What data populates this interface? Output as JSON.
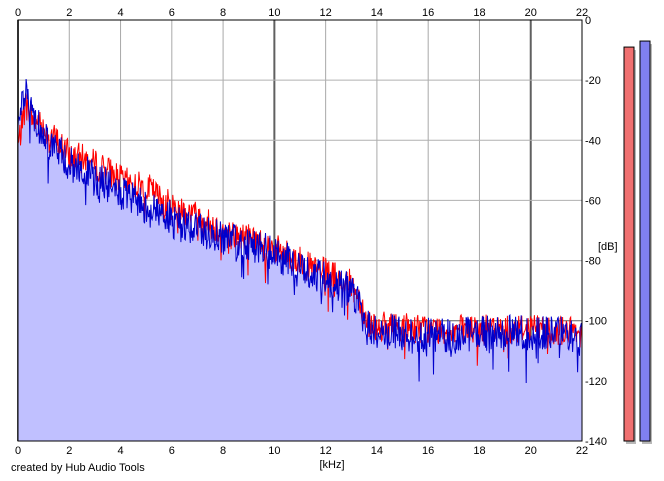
{
  "chart_data": {
    "type": "line",
    "xlabel": "[kHz]",
    "ylabel": "[dB]",
    "xlim": [
      0,
      22
    ],
    "ylim": [
      -140,
      0
    ],
    "x_ticks": [
      0,
      2,
      4,
      6,
      8,
      10,
      12,
      14,
      16,
      18,
      20,
      22
    ],
    "y_ticks": [
      0,
      -20,
      -40,
      -60,
      -80,
      -100,
      -120,
      -140
    ],
    "grid": true,
    "fill_color": "#c0c0ff",
    "series": [
      {
        "color": "#ff0000",
        "x": [
          0,
          0.3,
          0.6,
          1,
          1.5,
          2,
          2.5,
          3,
          3.5,
          4,
          4.5,
          5,
          5.5,
          6,
          6.5,
          7,
          7.5,
          8,
          8.5,
          9,
          9.5,
          10,
          10.5,
          11,
          11.5,
          12,
          12.5,
          13,
          13.3,
          13.6,
          14,
          15,
          16,
          17,
          18,
          19,
          20,
          21,
          22
        ],
        "y": [
          -42,
          -28,
          -33,
          -36,
          -40,
          -45,
          -46,
          -48,
          -50,
          -53,
          -55,
          -55,
          -59,
          -62,
          -63,
          -65,
          -68,
          -70,
          -72,
          -72,
          -74,
          -76,
          -78,
          -80,
          -83,
          -84,
          -86,
          -88,
          -92,
          -100,
          -102,
          -102,
          -103,
          -103,
          -103,
          -103,
          -102,
          -103,
          -104
        ]
      },
      {
        "color": "#0000cc",
        "x": [
          0,
          0.3,
          0.6,
          1,
          1.5,
          2,
          2.5,
          3,
          3.5,
          4,
          4.5,
          5,
          5.5,
          6,
          6.5,
          7,
          7.5,
          8,
          8.5,
          9,
          9.5,
          10,
          10.5,
          11,
          11.5,
          12,
          12.5,
          13,
          13.3,
          13.6,
          14,
          15,
          16,
          17,
          18,
          19,
          20,
          21,
          22
        ],
        "y": [
          -30,
          -24,
          -32,
          -38,
          -43,
          -48,
          -50,
          -53,
          -55,
          -58,
          -60,
          -62,
          -64,
          -66,
          -68,
          -69,
          -71,
          -72,
          -74,
          -74,
          -76,
          -78,
          -80,
          -82,
          -85,
          -86,
          -88,
          -90,
          -95,
          -102,
          -104,
          -104,
          -105,
          -105,
          -104,
          -104,
          -104,
          -104,
          -106
        ]
      }
    ],
    "meters": [
      {
        "color": "#f07070",
        "level": -9
      },
      {
        "color": "#8080f0",
        "level": -7
      }
    ]
  },
  "credit": "created by Hub Audio Tools"
}
